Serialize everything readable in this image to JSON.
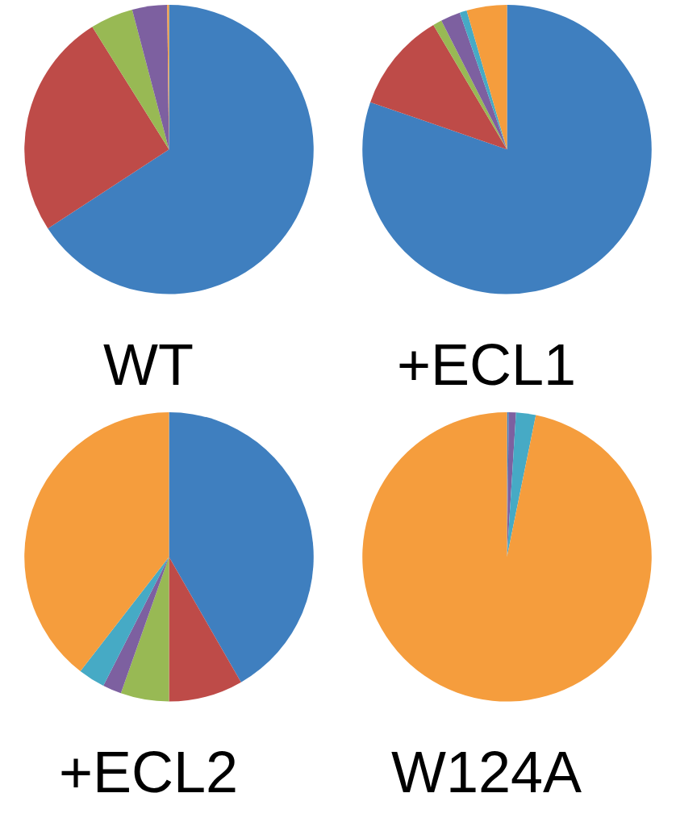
{
  "chart_data": [
    {
      "type": "pie",
      "title": "WT",
      "categories": [
        null,
        null,
        null,
        null,
        null,
        null
      ],
      "values": [
        65.8,
        25.3,
        4.8,
        3.9,
        0,
        0.2
      ],
      "colors": [
        "#3f7fbf",
        "#be4b48",
        "#98b954",
        "#7d60a0",
        "#46aac5",
        "#f59d3d"
      ]
    },
    {
      "type": "pie",
      "title": "+ECL1",
      "categories": [
        null,
        null,
        null,
        null,
        null,
        null
      ],
      "values": [
        80.3,
        11.2,
        1.0,
        2.2,
        0.8,
        4.5
      ],
      "colors": [
        "#3f7fbf",
        "#be4b48",
        "#98b954",
        "#7d60a0",
        "#46aac5",
        "#f59d3d"
      ]
    },
    {
      "type": "pie",
      "title": "+ECL2",
      "categories": [
        null,
        null,
        null,
        null,
        null,
        null
      ],
      "values": [
        41.7,
        8.3,
        5.4,
        2.1,
        3.0,
        39.5
      ],
      "colors": [
        "#3f7fbf",
        "#be4b48",
        "#98b954",
        "#7d60a0",
        "#46aac5",
        "#f59d3d"
      ]
    },
    {
      "type": "pie",
      "title": "W124A",
      "categories": [
        null,
        null,
        null,
        null,
        null,
        null
      ],
      "values": [
        0.2,
        0,
        0,
        0.8,
        2.2,
        96.8
      ],
      "colors": [
        "#3f7fbf",
        "#be4b48",
        "#98b954",
        "#7d60a0",
        "#46aac5",
        "#f59d3d"
      ]
    }
  ]
}
